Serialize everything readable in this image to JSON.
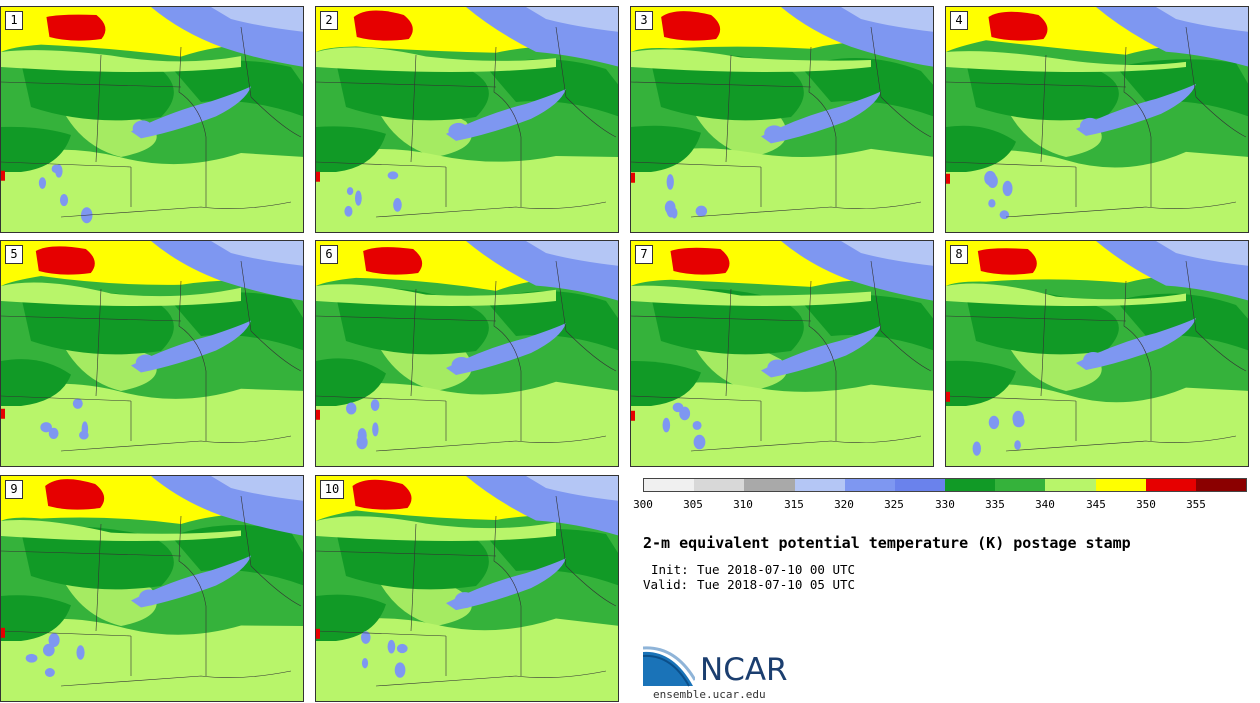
{
  "figure": {
    "title": "2-m equivalent potential temperature (K) postage stamp",
    "init_label": "Init:",
    "init": "Tue 2018-07-10 00 UTC",
    "valid_label": "Valid:",
    "valid": "Tue 2018-07-10 05 UTC"
  },
  "members": [
    "1",
    "2",
    "3",
    "4",
    "5",
    "6",
    "7",
    "8",
    "9",
    "10"
  ],
  "colorbar": {
    "ticks": [
      "300",
      "305",
      "310",
      "315",
      "320",
      "325",
      "330",
      "335",
      "340",
      "345",
      "350",
      "355"
    ],
    "colors": [
      "#f0f0f0",
      "#d8d8d8",
      "#a9a9a9",
      "#b4c6f5",
      "#7e97f1",
      "#6a82ec",
      "#119a26",
      "#35b23b",
      "#b8f56a",
      "#ffff00",
      "#e60000",
      "#8b0000"
    ]
  },
  "branding": {
    "logo_text": "NCAR",
    "url": "ensemble.ucar.edu"
  }
}
